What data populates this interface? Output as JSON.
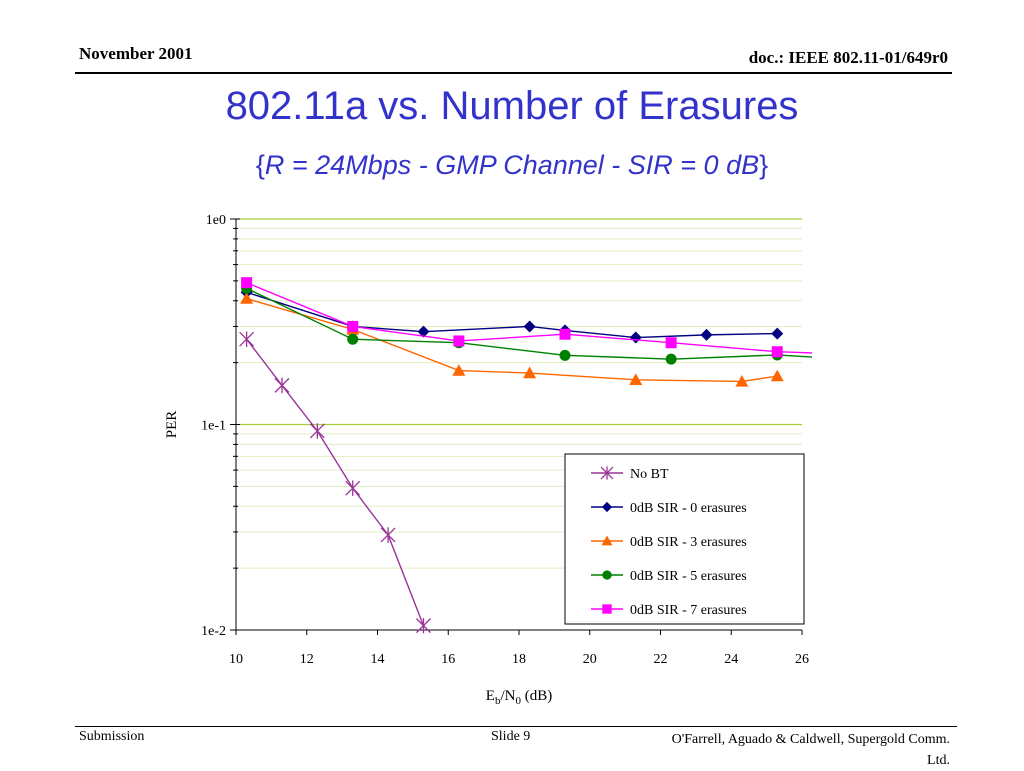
{
  "header": {
    "date": "November 2001",
    "doc": "doc.: IEEE 802.11-01/649r0"
  },
  "slide": {
    "title": "802.11a vs. Number of Erasures",
    "subtitle_open": "{",
    "subtitle_text": "R = 24Mbps  - GMP Channel - SIR = 0 dB",
    "subtitle_close": "}"
  },
  "chart_data": {
    "type": "line",
    "ylabel": "PER",
    "xlabel_main": "E",
    "xlabel_sub1": "b",
    "xlabel_mid": "/N",
    "xlabel_sub2": "0",
    "xlabel_tail": " (dB)",
    "xlim": [
      10,
      26
    ],
    "ylim": [
      0.01,
      1
    ],
    "yscale": "log",
    "xticks": [
      "10",
      "12",
      "14",
      "16",
      "18",
      "20",
      "22",
      "24",
      "26"
    ],
    "yticks": [
      "1e0",
      "1e-1",
      "1e-2"
    ],
    "grid": true,
    "legend_position": "bottom-right",
    "series": [
      {
        "name": "No BT",
        "color": "#993399",
        "marker": "asterisk",
        "x": [
          10.3,
          11.3,
          12.3,
          13.3,
          14.3,
          15.3
        ],
        "y": [
          0.26,
          0.155,
          0.093,
          0.049,
          0.029,
          0.0105
        ]
      },
      {
        "name": " 0dB SIR - 0 erasures",
        "color": "#000080",
        "marker": "diamond",
        "x": [
          10.3,
          13.3,
          15.3,
          18.3,
          19.3,
          21.3,
          23.3,
          25.3
        ],
        "y": [
          0.44,
          0.3,
          0.283,
          0.3,
          0.287,
          0.265,
          0.273,
          0.277
        ],
        "tail_x": [
          25.3
        ],
        "tail_y": [
          0.277
        ]
      },
      {
        "name": "0dB SIR - 3 erasures",
        "color": "#ff6600",
        "marker": "triangle",
        "x": [
          10.3,
          13.3,
          16.3,
          18.3,
          21.3,
          24.3,
          25.3
        ],
        "y": [
          0.41,
          0.29,
          0.183,
          0.178,
          0.165,
          0.162,
          0.172
        ],
        "tail_x": [
          25.3
        ],
        "tail_y": [
          0.172
        ]
      },
      {
        "name": "0dB SIR - 5 erasures",
        "color": "#008000",
        "marker": "circle",
        "x": [
          10.3,
          13.3,
          16.3,
          19.3,
          22.3,
          25.3
        ],
        "y": [
          0.46,
          0.26,
          0.25,
          0.217,
          0.208,
          0.218
        ],
        "tail_x": [
          25.3,
          26.3
        ],
        "tail_y": [
          0.218,
          0.213
        ]
      },
      {
        "name": "0dB SIR - 7 erasures",
        "color": "#ff00ff",
        "marker": "square",
        "x": [
          10.3,
          13.3,
          16.3,
          19.3,
          22.3,
          25.3
        ],
        "y": [
          0.49,
          0.3,
          0.255,
          0.275,
          0.25,
          0.226
        ],
        "tail_x": [
          25.3,
          26.3
        ],
        "tail_y": [
          0.226,
          0.223
        ]
      }
    ]
  },
  "footer": {
    "left": "Submission",
    "slide_no": "Slide 9",
    "authors_line1": "O'Farrell, Aguado & Caldwell, Supergold Comm.",
    "authors_line2": "Ltd."
  }
}
